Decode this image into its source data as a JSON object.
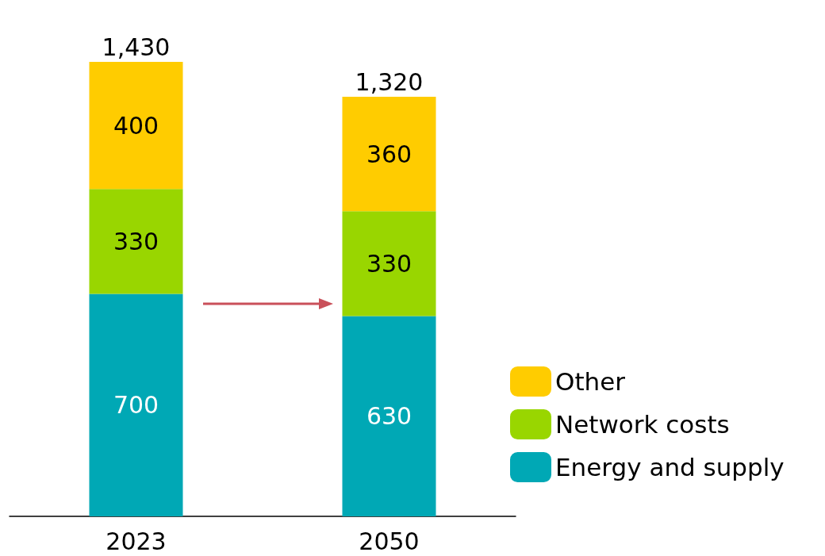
{
  "chart_data": {
    "type": "bar",
    "stacked": true,
    "categories": [
      "2023",
      "2050"
    ],
    "series": [
      {
        "name": "Energy and supply",
        "color": "#00a8b5",
        "values": [
          700,
          630
        ]
      },
      {
        "name": "Network costs",
        "color": "#99d600",
        "values": [
          330,
          330
        ]
      },
      {
        "name": "Other",
        "color": "#ffcc00",
        "values": [
          400,
          360
        ]
      }
    ],
    "data_labels": true,
    "totals": [
      "1,430",
      "1,320"
    ],
    "legend": "bottom right"
  }
}
